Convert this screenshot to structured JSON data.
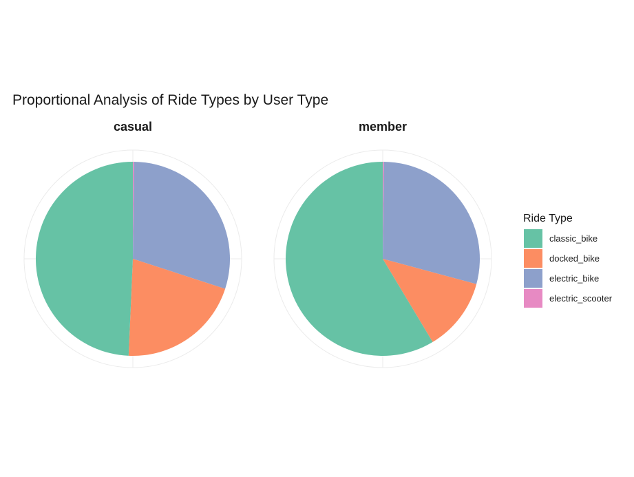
{
  "chart_data": {
    "type": "pie",
    "title": "Proportional Analysis of Ride Types by User Type",
    "legend": {
      "title": "Ride Type",
      "position": "right",
      "entries": [
        "classic_bike",
        "docked_bike",
        "electric_bike",
        "electric_scooter"
      ]
    },
    "colors": {
      "classic_bike": "#66c2a5",
      "docked_bike": "#fc8d62",
      "electric_bike": "#8da0cb",
      "electric_scooter": "#e78ac3"
    },
    "grid": true,
    "facets": [
      {
        "name": "casual",
        "slices": [
          {
            "category": "electric_scooter",
            "value": 0.002
          },
          {
            "category": "electric_bike",
            "value": 0.298
          },
          {
            "category": "docked_bike",
            "value": 0.207
          },
          {
            "category": "classic_bike",
            "value": 0.493
          }
        ]
      },
      {
        "name": "member",
        "slices": [
          {
            "category": "electric_scooter",
            "value": 0.002
          },
          {
            "category": "electric_bike",
            "value": 0.29
          },
          {
            "category": "docked_bike",
            "value": 0.122
          },
          {
            "category": "classic_bike",
            "value": 0.586
          }
        ]
      }
    ]
  }
}
